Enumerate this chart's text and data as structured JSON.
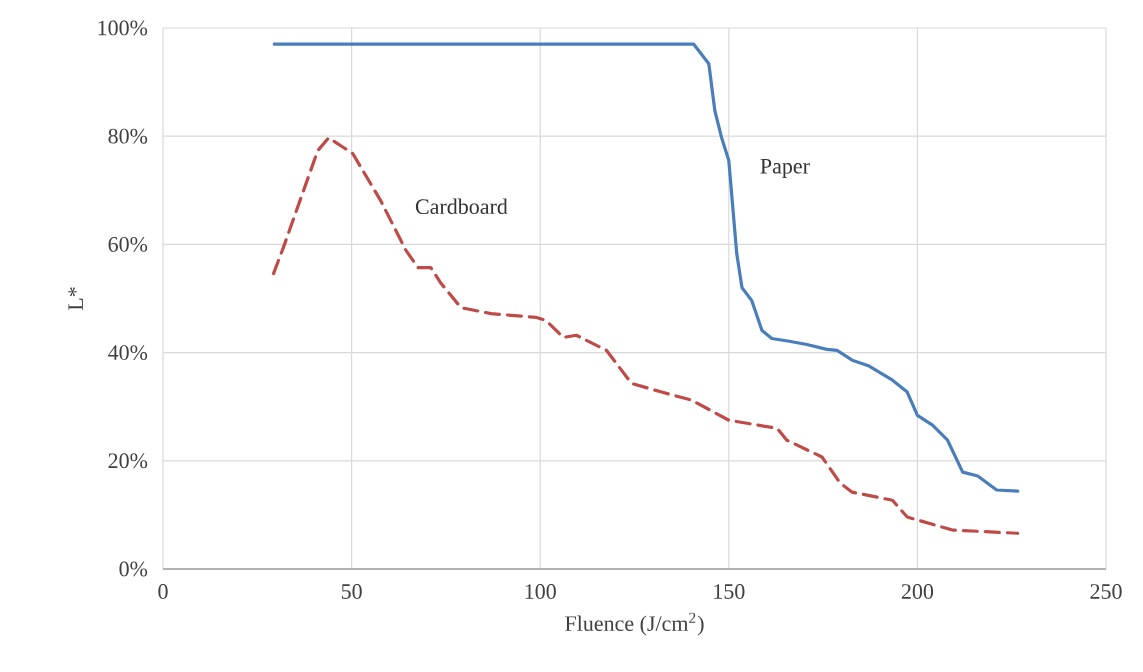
{
  "chart_data": {
    "type": "line",
    "xlabel": "Fluence (J/cm$^{2}$)",
    "ylabel": "L*",
    "xlim": [
      0,
      250
    ],
    "xticks": [
      0,
      50,
      100,
      150,
      200,
      250
    ],
    "ylim": [
      0,
      100
    ],
    "yticks": [
      {
        "value": 0,
        "label": "0%"
      },
      {
        "value": 20,
        "label": "20%"
      },
      {
        "value": 40,
        "label": "40%"
      },
      {
        "value": 60,
        "label": "60%"
      },
      {
        "value": 80,
        "label": "80%"
      },
      {
        "value": 100,
        "label": "100%"
      }
    ],
    "grid": true,
    "series": [
      {
        "name": "Paper",
        "color": "#4a7ebb",
        "line_style": "solid",
        "x": [
          29.5,
          60,
          100,
          140.7,
          144.7,
          146.3,
          148.1,
          150,
          152.1,
          153.5,
          156.1,
          158.8,
          161.4,
          166,
          170.7,
          176,
          178.7,
          182.7,
          187.2,
          193.4,
          197.3,
          200,
          204,
          208,
          212,
          216,
          221,
          226.6
        ],
        "values": [
          97,
          97,
          97,
          97,
          93.4,
          84.7,
          79.7,
          75.5,
          58.3,
          52,
          49.6,
          44.1,
          42.6,
          42.1,
          41.5,
          40.6,
          40.4,
          38.6,
          37.5,
          34.9,
          32.7,
          28.4,
          26.6,
          23.8,
          17.9,
          17.2,
          14.6,
          14.4
        ]
      },
      {
        "name": "Cardboard",
        "color": "#be4b48",
        "line_style": "dashed",
        "x": [
          29.3,
          31.9,
          41,
          43.9,
          50.3,
          57.7,
          64.4,
          67.6,
          71,
          73.7,
          79,
          87,
          99,
          101.6,
          106.1,
          109.6,
          117.6,
          124.2,
          132.2,
          140.2,
          150,
          162.8,
          165.4,
          174.7,
          179.5,
          182.7,
          193.4,
          197.3,
          209.3,
          226.6
        ],
        "values": [
          54.6,
          59.4,
          77.3,
          79.7,
          76.8,
          68.1,
          58.9,
          55.7,
          55.7,
          52.8,
          48.3,
          47.2,
          46.5,
          45.9,
          42.8,
          43.2,
          40.4,
          34.3,
          32.7,
          31.2,
          27.5,
          26,
          23.8,
          20.7,
          15.9,
          14.2,
          12.7,
          9.6,
          7.2,
          6.6
        ]
      }
    ]
  }
}
